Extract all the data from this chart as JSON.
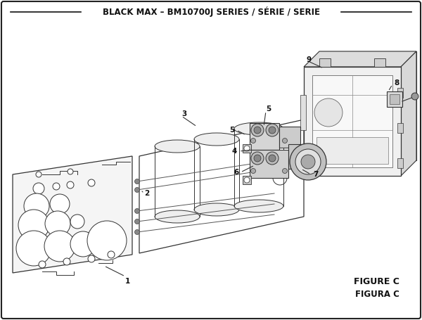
{
  "title": "BLACK MAX – BM10700J SERIES / SÉRIE / SERIE",
  "figure_label": "FIGURE C",
  "figura_label": "FIGURA C",
  "bg_color": "#ffffff",
  "border_color": "#000000"
}
